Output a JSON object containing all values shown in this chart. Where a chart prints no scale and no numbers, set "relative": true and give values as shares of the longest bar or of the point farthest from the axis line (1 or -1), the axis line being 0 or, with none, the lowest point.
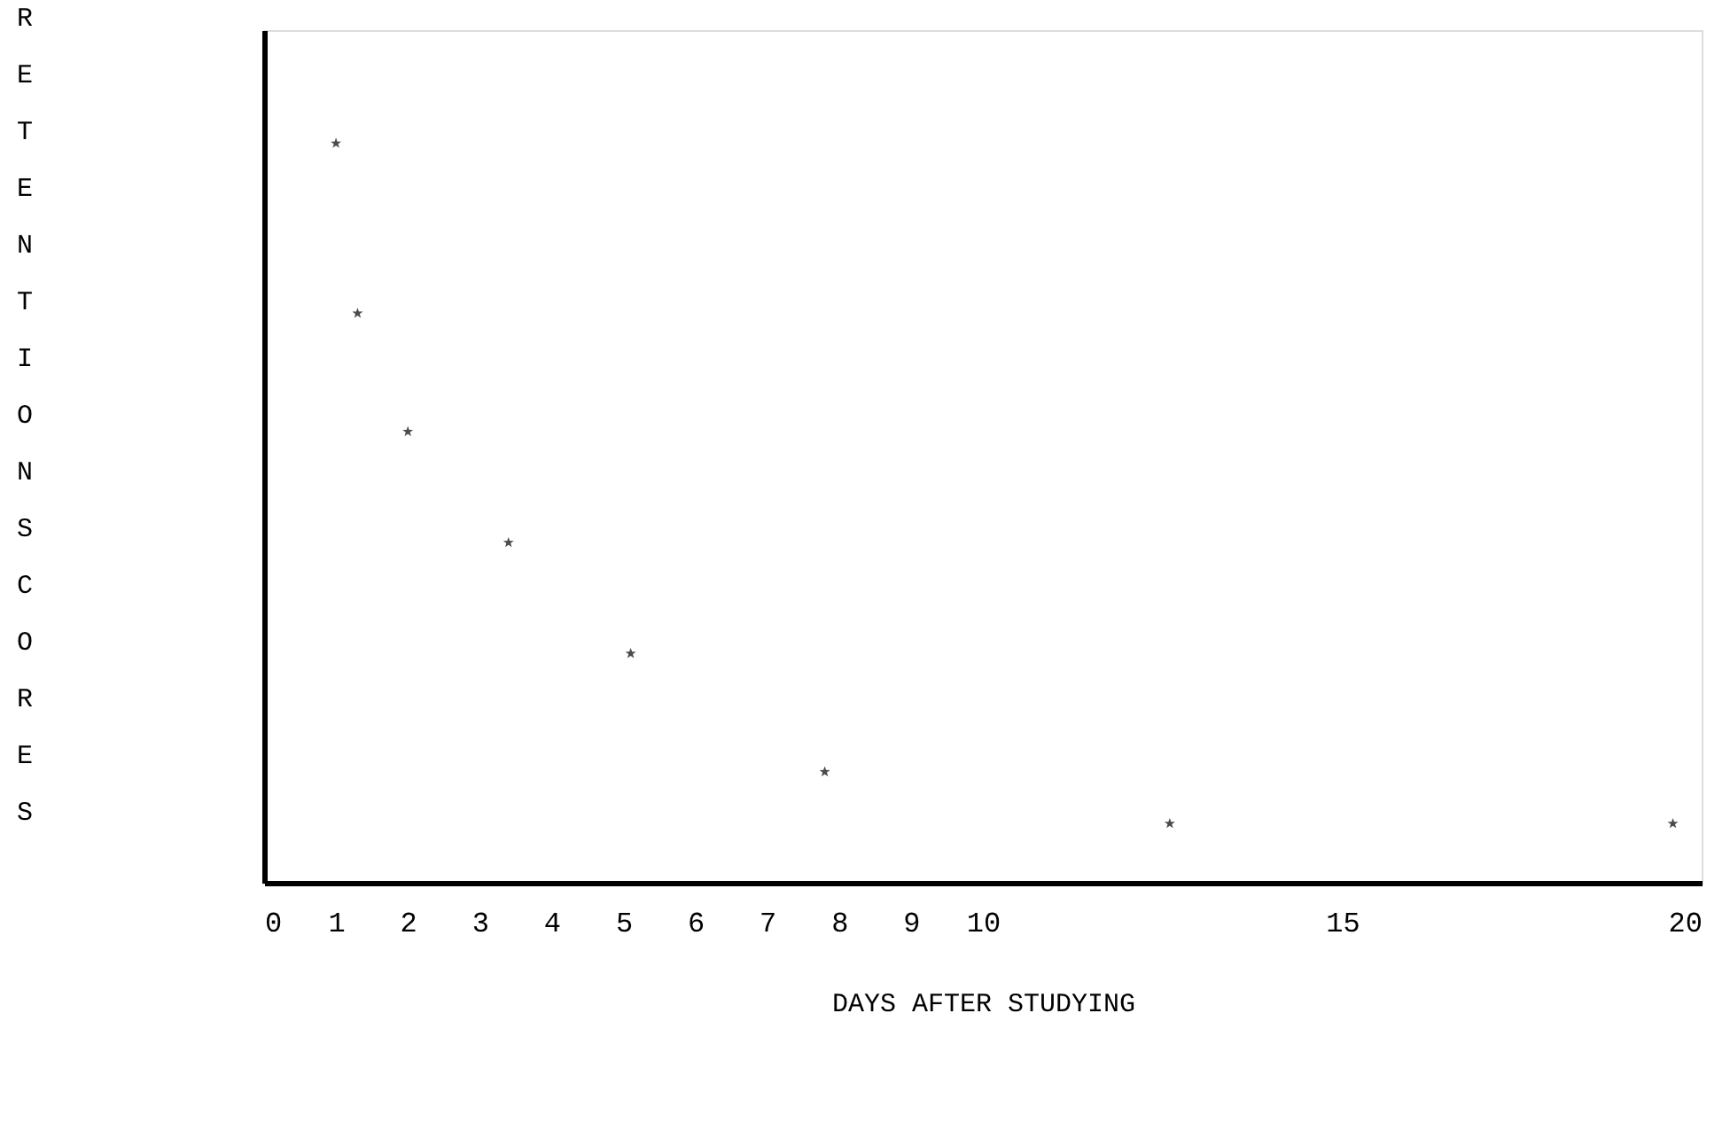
{
  "chart_data": {
    "type": "scatter",
    "xlabel": "DAYS AFTER STUDYING",
    "ylabel": "RETENTION SCORES",
    "relative": true,
    "x": [
      1,
      1.3,
      2,
      3.4,
      5.1,
      7.8,
      12.6,
      19.6
    ],
    "values": [
      1,
      0.77,
      0.61,
      0.46,
      0.31,
      0.15,
      0.08,
      0.08
    ],
    "color": "#000000",
    "marker": "star",
    "xlim": [
      0,
      20
    ],
    "xticks": [
      0,
      1,
      2,
      3,
      4,
      5,
      6,
      7,
      8,
      9,
      10,
      15,
      20
    ],
    "grid": false
  }
}
